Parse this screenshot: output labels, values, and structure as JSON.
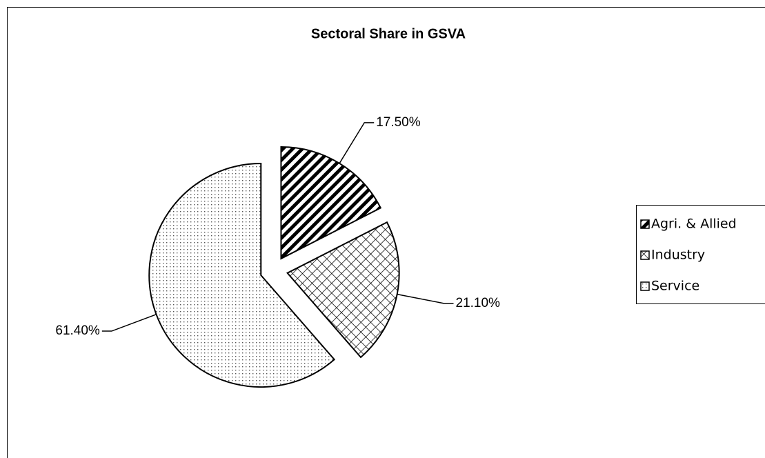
{
  "chart_data": {
    "type": "pie",
    "title": "Sectoral Share in GSVA",
    "categories": [
      "Agri. & Allied",
      "Industry",
      "Service"
    ],
    "values": [
      17.5,
      21.1,
      61.4
    ],
    "value_labels": [
      "17.50%",
      "21.10%",
      "61.40%"
    ],
    "legend": "right"
  }
}
